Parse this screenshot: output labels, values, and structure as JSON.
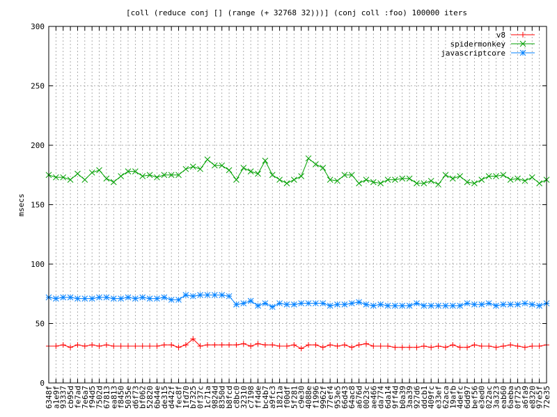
{
  "chart_data": {
    "type": "line",
    "title": "[coll (reduce conj [] (range (+ 32768 32)))] (conj coll :foo) 100000 iters",
    "xlabel": "",
    "ylabel": "msecs",
    "ylim": [
      0,
      300
    ],
    "yticks": [
      0,
      50,
      100,
      150,
      200,
      250,
      300
    ],
    "grid": true,
    "legend_position": "top-right",
    "categories": [
      "6348f",
      "a1e9f",
      "93337",
      "cb95d",
      "fe7ad",
      "7e6a7",
      "f94d5",
      "7502d",
      "67813",
      "ea813",
      "f8450",
      "5035e",
      "d6f73",
      "bf062",
      "52820",
      "6b44e",
      "de315",
      "d442f",
      "fec8f",
      "1fd70",
      "b7325",
      "0f37c",
      "1c71a",
      "9824d",
      "8350d",
      "b8fcd",
      "c8bc0",
      "32310",
      "c7198",
      "ff4de",
      "bc4b7",
      "a9fc3",
      "1821a",
      "f00df",
      "5f281",
      "c9e30",
      "4088e",
      "f1996",
      "9962f",
      "77ef4",
      "953e5",
      "66d43",
      "64ac8",
      "a676d",
      "0023c",
      "ae466",
      "da774",
      "6da14",
      "9ff4d",
      "b0a39",
      "3aa39",
      "927d6",
      "ddcb1",
      "409fc",
      "e33ef",
      "62aca",
      "19afb",
      "4defc",
      "6dd97",
      "bef56",
      "e3ed0",
      "022ac",
      "3a323",
      "eab60",
      "6aeba",
      "0f725",
      "a6fa9",
      "e8320",
      "97e5f",
      "72e35"
    ],
    "series": [
      {
        "name": "v8",
        "color": "#ff0000",
        "marker": "+",
        "values": [
          31,
          31,
          32,
          30,
          32,
          31,
          32,
          31,
          32,
          31,
          31,
          31,
          31,
          31,
          31,
          31,
          32,
          32,
          30,
          32,
          37,
          31,
          32,
          32,
          32,
          32,
          32,
          33,
          31,
          33,
          32,
          32,
          31,
          31,
          32,
          29,
          32,
          32,
          30,
          32,
          31,
          32,
          30,
          32,
          33,
          31,
          31,
          31,
          30,
          30,
          30,
          30,
          31,
          30,
          31,
          30,
          32,
          30,
          30,
          32,
          31,
          31,
          30,
          31,
          32,
          31,
          30,
          31,
          31,
          32
        ]
      },
      {
        "name": "spidermonkey",
        "color": "#00a000",
        "marker": "x",
        "values": [
          175,
          173,
          173,
          171,
          176,
          171,
          177,
          179,
          172,
          169,
          174,
          178,
          178,
          174,
          175,
          173,
          175,
          175,
          175,
          180,
          182,
          180,
          188,
          183,
          183,
          179,
          171,
          181,
          178,
          176,
          187,
          175,
          171,
          168,
          171,
          174,
          189,
          184,
          181,
          171,
          170,
          175,
          175,
          168,
          171,
          169,
          168,
          171,
          171,
          172,
          172,
          168,
          168,
          170,
          167,
          175,
          172,
          174,
          169,
          168,
          171,
          174,
          174,
          175,
          171,
          172,
          170,
          173,
          168,
          171
        ]
      },
      {
        "name": "javascriptcore",
        "color": "#0080ff",
        "marker": "*",
        "values": [
          72,
          71,
          72,
          72,
          71,
          71,
          71,
          72,
          72,
          71,
          71,
          72,
          71,
          72,
          71,
          71,
          72,
          70,
          70,
          74,
          73,
          74,
          74,
          74,
          74,
          73,
          66,
          67,
          69,
          65,
          67,
          64,
          67,
          66,
          66,
          67,
          67,
          67,
          67,
          65,
          66,
          66,
          67,
          68,
          66,
          65,
          66,
          65,
          65,
          65,
          65,
          67,
          65,
          65,
          65,
          65,
          65,
          65,
          67,
          66,
          66,
          67,
          65,
          66,
          66,
          66,
          67,
          66,
          65,
          67
        ]
      }
    ]
  }
}
